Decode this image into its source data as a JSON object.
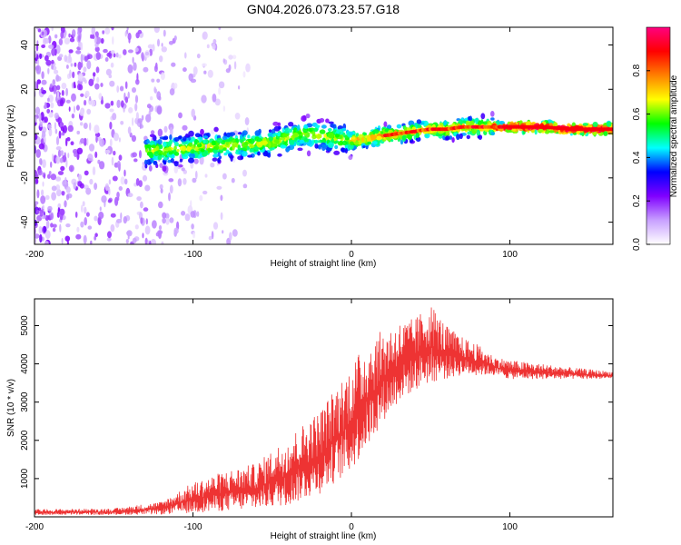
{
  "title": "GN04.2026.073.23.57.G18",
  "chart_data": [
    {
      "type": "heatmap",
      "title": "GN04.2026.073.23.57.G18",
      "xlabel": "Height of straight line (km)",
      "ylabel": "Frequency (Hz)",
      "xlim": [
        -200,
        165
      ],
      "ylim": [
        -50,
        48
      ],
      "xticks": [
        -200,
        -100,
        0,
        100
      ],
      "yticks": [
        -40,
        -20,
        0,
        20,
        40
      ],
      "colorbar": {
        "label": "Normalized spectral amplitude",
        "range": [
          0.0,
          1.0
        ],
        "ticks": [
          0.0,
          0.2,
          0.4,
          0.6,
          0.8
        ],
        "tick_labels": [
          "0.0",
          "0.2",
          "0.4",
          "0.6",
          "0.8"
        ],
        "colormap": [
          "#ffffff",
          "#c8a0ff",
          "#8000ff",
          "#0000ff",
          "#00ffff",
          "#00ff00",
          "#ffff00",
          "#ff8000",
          "#ff0000",
          "#ff0080"
        ]
      },
      "ridge_frequency_hz": {
        "x": [
          -130,
          -110,
          -90,
          -70,
          -50,
          -40,
          -30,
          -20,
          -10,
          0,
          10,
          20,
          30,
          40,
          50,
          60,
          70,
          80,
          90,
          100,
          120,
          140,
          165
        ],
        "y": [
          -8,
          -7,
          -6,
          -5,
          -4,
          -2,
          0,
          -1,
          -2,
          -3,
          -2,
          -1,
          0,
          1,
          2,
          2,
          3,
          3,
          3,
          3,
          3,
          2,
          2
        ]
      },
      "noise_region_km": [
        -200,
        -130
      ]
    },
    {
      "type": "line",
      "xlabel": "Height of straight line (km)",
      "ylabel": "SNR (10 * v/v)",
      "xlim": [
        -200,
        165
      ],
      "ylim": [
        0,
        5700
      ],
      "xticks": [
        -200,
        -100,
        0,
        100
      ],
      "yticks": [
        1000,
        2000,
        3000,
        4000,
        5000
      ],
      "series": [
        {
          "name": "SNR",
          "color": "#ee3333",
          "envelope": {
            "x": [
              -200,
              -150,
              -120,
              -100,
              -80,
              -60,
              -40,
              -20,
              0,
              10,
              20,
              30,
              40,
              50,
              60,
              70,
              80,
              90,
              100,
              120,
              140,
              165
            ],
            "low": [
              50,
              50,
              60,
              100,
              150,
              200,
              300,
              600,
              1200,
              1800,
              2500,
              3000,
              3300,
              3500,
              3600,
              3700,
              3700,
              3700,
              3600,
              3600,
              3600,
              3600
            ],
            "high": [
              200,
              220,
              400,
              900,
              1200,
              1400,
              2100,
              2800,
              4000,
              4600,
              4900,
              5100,
              5200,
              5600,
              5000,
              4700,
              4500,
              4200,
              4100,
              4000,
              3900,
              3800
            ]
          }
        }
      ]
    }
  ]
}
